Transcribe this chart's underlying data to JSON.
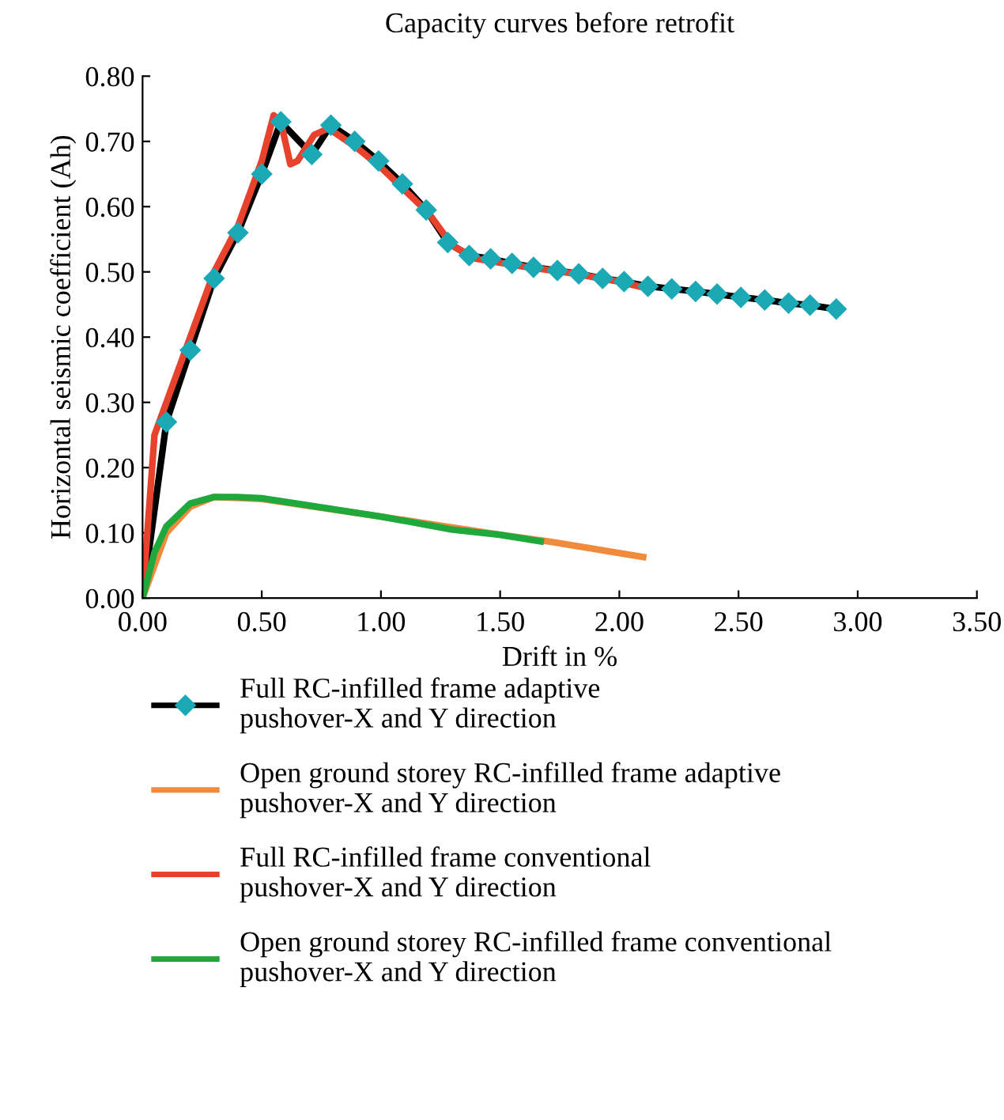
{
  "chart_data": {
    "type": "line",
    "title": "Capacity curves before retrofit",
    "xlabel": "Drift in %",
    "ylabel": "Horizontal seismic coefficient (Ah)",
    "xlim": [
      0,
      3.5
    ],
    "ylim": [
      0,
      0.8
    ],
    "xticks": [
      {
        "value": 0,
        "label": "0.00"
      },
      {
        "value": 0.5,
        "label": "0.50"
      },
      {
        "value": 1,
        "label": "1.00"
      },
      {
        "value": 1.5,
        "label": "1.50"
      },
      {
        "value": 2,
        "label": "2.00"
      },
      {
        "value": 2.5,
        "label": "2.50"
      },
      {
        "value": 3,
        "label": "3.00"
      },
      {
        "value": 3.5,
        "label": "3.50"
      }
    ],
    "yticks": [
      {
        "value": 0,
        "label": "0.00"
      },
      {
        "value": 0.1,
        "label": "0.10"
      },
      {
        "value": 0.2,
        "label": "0.20"
      },
      {
        "value": 0.3,
        "label": "0.30"
      },
      {
        "value": 0.4,
        "label": "0.40"
      },
      {
        "value": 0.5,
        "label": "0.50"
      },
      {
        "value": 0.6,
        "label": "0.60"
      },
      {
        "value": 0.7,
        "label": "0.70"
      },
      {
        "value": 0.8,
        "label": "0.80"
      }
    ],
    "grid": false,
    "legend": "bottom",
    "line_style": "solid",
    "series": [
      {
        "name": "Full RC-infilled frame adaptive\npushover-X and Y direction",
        "color": "#000000",
        "marker": "diamond",
        "x": [
          0,
          0.1,
          0.2,
          0.3,
          0.4,
          0.5,
          0.58,
          0.71,
          0.79,
          0.89,
          0.99,
          1.09,
          1.19,
          1.28,
          1.37,
          1.46,
          1.55,
          1.64,
          1.74,
          1.83,
          1.93,
          2.02,
          2.12,
          2.22,
          2.32,
          2.41,
          2.51,
          2.61,
          2.71,
          2.8,
          2.91
        ],
        "values": [
          0,
          0.27,
          0.38,
          0.49,
          0.56,
          0.65,
          0.73,
          0.68,
          0.725,
          0.7,
          0.67,
          0.635,
          0.595,
          0.545,
          0.525,
          0.52,
          0.513,
          0.507,
          0.502,
          0.497,
          0.49,
          0.485,
          0.478,
          0.474,
          0.47,
          0.466,
          0.461,
          0.457,
          0.452,
          0.449,
          0.443
        ]
      },
      {
        "name": "Open ground storey RC-infilled frame adaptive\npushover-X and Y direction",
        "color": "#f08a3c",
        "marker": "none",
        "x": [
          0,
          0.05,
          0.1,
          0.2,
          0.3,
          0.5,
          1.0,
          1.5,
          1.7,
          2.1
        ],
        "values": [
          0,
          0.05,
          0.1,
          0.14,
          0.155,
          0.152,
          0.125,
          0.097,
          0.087,
          0.063
        ]
      },
      {
        "name": "Full RC-infilled frame conventional\npushover-X and Y direction",
        "color": "#e8412c",
        "marker": "none",
        "x": [
          0,
          0.05,
          0.1,
          0.2,
          0.3,
          0.4,
          0.5,
          0.55,
          0.58,
          0.62,
          0.65,
          0.72,
          0.78,
          0.9,
          1.0,
          1.2,
          1.3,
          1.4,
          1.6,
          1.8,
          2.0,
          2.08
        ],
        "values": [
          0,
          0.25,
          0.3,
          0.4,
          0.5,
          0.57,
          0.67,
          0.74,
          0.73,
          0.665,
          0.67,
          0.71,
          0.72,
          0.69,
          0.66,
          0.59,
          0.54,
          0.52,
          0.508,
          0.498,
          0.485,
          0.478
        ]
      },
      {
        "name": "Open ground storey RC-infilled frame conventional\npushover-X and Y direction",
        "color": "#1fa83c",
        "marker": "none",
        "x": [
          0,
          0.05,
          0.1,
          0.2,
          0.3,
          0.4,
          0.5,
          0.7,
          1.0,
          1.3,
          1.5,
          1.67
        ],
        "values": [
          0,
          0.07,
          0.11,
          0.145,
          0.155,
          0.155,
          0.153,
          0.142,
          0.125,
          0.105,
          0.097,
          0.087
        ]
      }
    ]
  }
}
